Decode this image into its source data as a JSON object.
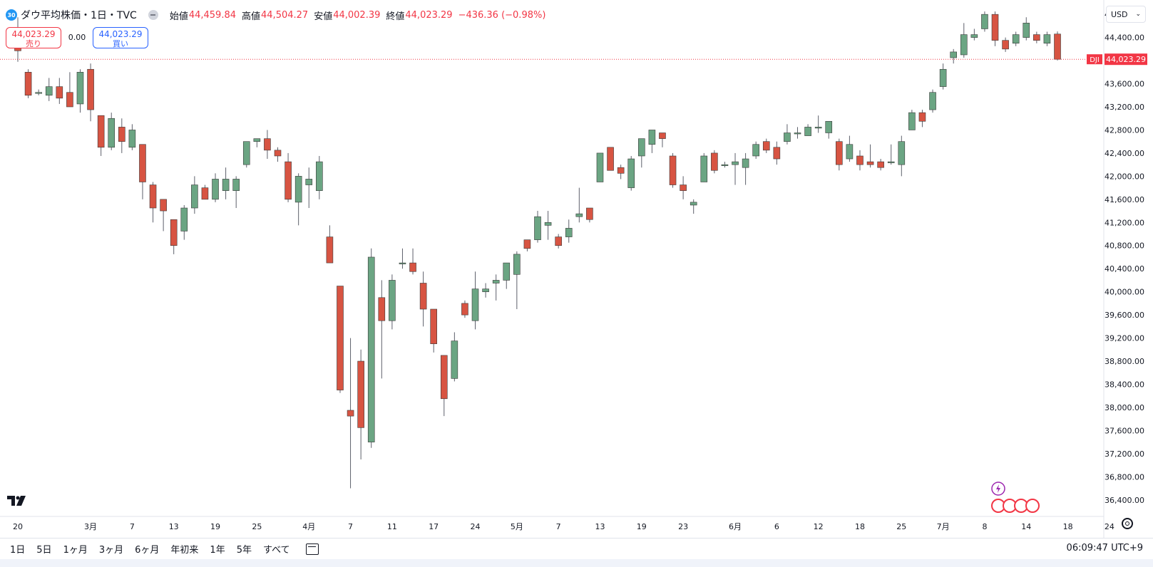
{
  "legend": {
    "badge": "30",
    "title": "ダウ平均株価・1日・TVC",
    "open_label": "始値",
    "open": "44,459.84",
    "high_label": "高値",
    "high": "44,504.27",
    "low_label": "安値",
    "low": "44,002.39",
    "close_label": "終値",
    "close": "44,023.29",
    "change": "−436.36 (−0.98%)"
  },
  "trade": {
    "sell_price": "44,023.29",
    "sell_label": "売り",
    "spread": "0.00",
    "buy_price": "44,023.29",
    "buy_label": "買い"
  },
  "currency": "USD",
  "colors": {
    "up": "#6ba583",
    "down": "#d75442",
    "wick": "#5d606b",
    "current": "#f23645",
    "axis_text": "#131722"
  },
  "icons": [
    "tradingview-logo-icon",
    "lightning-icon",
    "us-flag-icon",
    "settings-icon",
    "calendar-goto-icon",
    "chevron-down-icon"
  ],
  "chart_data": {
    "type": "candlestick",
    "symbol": "DJI",
    "current_price_label": "44,023.29",
    "current_price": 44023.29,
    "ylim": [
      36200,
      44950
    ],
    "y_ticks": [
      36400,
      36800,
      37200,
      37600,
      38000,
      38400,
      38800,
      39200,
      39600,
      40000,
      40400,
      40800,
      41200,
      41600,
      42000,
      42400,
      42800,
      43200,
      43600,
      44000,
      44400,
      44800
    ],
    "y_tick_labels": [
      "36,400.00",
      "36,800.00",
      "37,200.00",
      "37,600.00",
      "38,000.00",
      "38,400.00",
      "38,800.00",
      "39,200.00",
      "39,600.00",
      "40,000.00",
      "40,400.00",
      "40,800.00",
      "41,200.00",
      "41,600.00",
      "42,000.00",
      "42,400.00",
      "42,800.00",
      "43,200.00",
      "43,600.00",
      "44,000.00",
      "44,400.00",
      "44,800.00"
    ],
    "x_tick_labels": [
      {
        "label": "20",
        "candle": 0
      },
      {
        "label": "3月",
        "candle": 7
      },
      {
        "label": "7",
        "candle": 11
      },
      {
        "label": "13",
        "candle": 15
      },
      {
        "label": "19",
        "candle": 19
      },
      {
        "label": "25",
        "candle": 23
      },
      {
        "label": "4月",
        "candle": 28
      },
      {
        "label": "7",
        "candle": 32
      },
      {
        "label": "11",
        "candle": 36
      },
      {
        "label": "17",
        "candle": 40
      },
      {
        "label": "24",
        "candle": 44
      },
      {
        "label": "5月",
        "candle": 48
      },
      {
        "label": "7",
        "candle": 52
      },
      {
        "label": "13",
        "candle": 56
      },
      {
        "label": "19",
        "candle": 60
      },
      {
        "label": "23",
        "candle": 64
      },
      {
        "label": "6月",
        "candle": 69
      },
      {
        "label": "6",
        "candle": 73
      },
      {
        "label": "12",
        "candle": 77
      },
      {
        "label": "18",
        "candle": 81
      },
      {
        "label": "25",
        "candle": 85
      },
      {
        "label": "7月",
        "candle": 89
      },
      {
        "label": "8",
        "candle": 93
      },
      {
        "label": "14",
        "candle": 97
      },
      {
        "label": "18",
        "candle": 101
      },
      {
        "label": "24",
        "candle": 105
      }
    ],
    "candles": [
      {
        "o": 44420,
        "h": 44750,
        "l": 43980,
        "c": 44170
      },
      {
        "o": 43800,
        "h": 43850,
        "l": 43350,
        "c": 43400
      },
      {
        "o": 43450,
        "h": 43500,
        "l": 43400,
        "c": 43450
      },
      {
        "o": 43400,
        "h": 43700,
        "l": 43300,
        "c": 43550
      },
      {
        "o": 43550,
        "h": 43700,
        "l": 43250,
        "c": 43350
      },
      {
        "o": 43450,
        "h": 43800,
        "l": 43200,
        "c": 43200
      },
      {
        "o": 43250,
        "h": 43850,
        "l": 43100,
        "c": 43800
      },
      {
        "o": 43850,
        "h": 43950,
        "l": 42950,
        "c": 43150
      },
      {
        "o": 43050,
        "h": 43050,
        "l": 42350,
        "c": 42500
      },
      {
        "o": 42500,
        "h": 43100,
        "l": 42450,
        "c": 43000
      },
      {
        "o": 42850,
        "h": 43000,
        "l": 42400,
        "c": 42600
      },
      {
        "o": 42500,
        "h": 42900,
        "l": 42450,
        "c": 42800
      },
      {
        "o": 42550,
        "h": 42550,
        "l": 41600,
        "c": 41900
      },
      {
        "o": 41850,
        "h": 41900,
        "l": 41200,
        "c": 41450
      },
      {
        "o": 41600,
        "h": 41600,
        "l": 41050,
        "c": 41400
      },
      {
        "o": 41250,
        "h": 41250,
        "l": 40650,
        "c": 40800
      },
      {
        "o": 41050,
        "h": 41500,
        "l": 40900,
        "c": 41450
      },
      {
        "o": 41450,
        "h": 42000,
        "l": 41350,
        "c": 41850
      },
      {
        "o": 41800,
        "h": 41850,
        "l": 41650,
        "c": 41600
      },
      {
        "o": 41600,
        "h": 42050,
        "l": 41550,
        "c": 41950
      },
      {
        "o": 41750,
        "h": 42150,
        "l": 41600,
        "c": 41950
      },
      {
        "o": 41750,
        "h": 42000,
        "l": 41450,
        "c": 41950
      },
      {
        "o": 42200,
        "h": 42600,
        "l": 42150,
        "c": 42600
      },
      {
        "o": 42600,
        "h": 42650,
        "l": 42500,
        "c": 42650
      },
      {
        "o": 42650,
        "h": 42800,
        "l": 42300,
        "c": 42450
      },
      {
        "o": 42450,
        "h": 42500,
        "l": 42250,
        "c": 42350
      },
      {
        "o": 42250,
        "h": 42400,
        "l": 41550,
        "c": 41600
      },
      {
        "o": 41550,
        "h": 42050,
        "l": 41150,
        "c": 42000
      },
      {
        "o": 41850,
        "h": 42150,
        "l": 41450,
        "c": 41950
      },
      {
        "o": 41750,
        "h": 42350,
        "l": 41600,
        "c": 42250
      },
      {
        "o": 40950,
        "h": 41150,
        "l": 40500,
        "c": 40500
      },
      {
        "o": 40100,
        "h": 40100,
        "l": 38250,
        "c": 38300
      },
      {
        "o": 37950,
        "h": 39200,
        "l": 36600,
        "c": 37850
      },
      {
        "o": 38800,
        "h": 39000,
        "l": 37100,
        "c": 37650
      },
      {
        "o": 37400,
        "h": 40750,
        "l": 37300,
        "c": 40600
      },
      {
        "o": 39900,
        "h": 40200,
        "l": 38500,
        "c": 39500
      },
      {
        "o": 39500,
        "h": 40300,
        "l": 39350,
        "c": 40200
      },
      {
        "o": 40500,
        "h": 40750,
        "l": 40400,
        "c": 40500
      },
      {
        "o": 40500,
        "h": 40750,
        "l": 40300,
        "c": 40350
      },
      {
        "o": 40150,
        "h": 40350,
        "l": 39400,
        "c": 39700
      },
      {
        "o": 39700,
        "h": 39700,
        "l": 38950,
        "c": 39100
      },
      {
        "o": 38900,
        "h": 38900,
        "l": 37850,
        "c": 38150
      },
      {
        "o": 38500,
        "h": 39300,
        "l": 38450,
        "c": 39150
      },
      {
        "o": 39800,
        "h": 39850,
        "l": 39550,
        "c": 39600
      },
      {
        "o": 39500,
        "h": 40350,
        "l": 39350,
        "c": 40050
      },
      {
        "o": 40000,
        "h": 40150,
        "l": 39900,
        "c": 40050
      },
      {
        "o": 40150,
        "h": 40300,
        "l": 39850,
        "c": 40200
      },
      {
        "o": 40200,
        "h": 40500,
        "l": 40050,
        "c": 40500
      },
      {
        "o": 40300,
        "h": 40700,
        "l": 39700,
        "c": 40650
      },
      {
        "o": 40900,
        "h": 40900,
        "l": 40700,
        "c": 40750
      },
      {
        "o": 40900,
        "h": 41400,
        "l": 40850,
        "c": 41300
      },
      {
        "o": 41150,
        "h": 41400,
        "l": 40900,
        "c": 41200
      },
      {
        "o": 40950,
        "h": 41000,
        "l": 40750,
        "c": 40800
      },
      {
        "o": 40950,
        "h": 41250,
        "l": 40850,
        "c": 41100
      },
      {
        "o": 41300,
        "h": 41800,
        "l": 41200,
        "c": 41350
      },
      {
        "o": 41450,
        "h": 41450,
        "l": 41200,
        "c": 41250
      },
      {
        "o": 41900,
        "h": 42400,
        "l": 41900,
        "c": 42400
      },
      {
        "o": 42500,
        "h": 42500,
        "l": 42100,
        "c": 42100
      },
      {
        "o": 42150,
        "h": 42200,
        "l": 41950,
        "c": 42050
      },
      {
        "o": 41800,
        "h": 42350,
        "l": 41750,
        "c": 42300
      },
      {
        "o": 42350,
        "h": 42650,
        "l": 42150,
        "c": 42650
      },
      {
        "o": 42550,
        "h": 42800,
        "l": 42400,
        "c": 42800
      },
      {
        "o": 42750,
        "h": 42750,
        "l": 42500,
        "c": 42650
      },
      {
        "o": 42350,
        "h": 42400,
        "l": 41800,
        "c": 41850
      },
      {
        "o": 41850,
        "h": 42000,
        "l": 41600,
        "c": 41750
      },
      {
        "o": 41500,
        "h": 41600,
        "l": 41350,
        "c": 41550
      },
      {
        "o": 41900,
        "h": 42400,
        "l": 41900,
        "c": 42350
      },
      {
        "o": 42400,
        "h": 42450,
        "l": 42050,
        "c": 42100
      },
      {
        "o": 42200,
        "h": 42250,
        "l": 42150,
        "c": 42200
      },
      {
        "o": 42200,
        "h": 42400,
        "l": 41850,
        "c": 42250
      },
      {
        "o": 42150,
        "h": 42400,
        "l": 41850,
        "c": 42300
      },
      {
        "o": 42350,
        "h": 42600,
        "l": 42300,
        "c": 42550
      },
      {
        "o": 42600,
        "h": 42650,
        "l": 42400,
        "c": 42450
      },
      {
        "o": 42500,
        "h": 42600,
        "l": 42200,
        "c": 42300
      },
      {
        "o": 42600,
        "h": 42900,
        "l": 42550,
        "c": 42750
      },
      {
        "o": 42750,
        "h": 42850,
        "l": 42650,
        "c": 42750
      },
      {
        "o": 42700,
        "h": 42900,
        "l": 42700,
        "c": 42850
      },
      {
        "o": 42850,
        "h": 43050,
        "l": 42750,
        "c": 42850
      },
      {
        "o": 42750,
        "h": 42950,
        "l": 42650,
        "c": 42950
      },
      {
        "o": 42600,
        "h": 42650,
        "l": 42100,
        "c": 42200
      },
      {
        "o": 42300,
        "h": 42700,
        "l": 42250,
        "c": 42550
      },
      {
        "o": 42350,
        "h": 42450,
        "l": 42100,
        "c": 42200
      },
      {
        "o": 42250,
        "h": 42550,
        "l": 42150,
        "c": 42200
      },
      {
        "o": 42250,
        "h": 42300,
        "l": 42100,
        "c": 42150
      },
      {
        "o": 42250,
        "h": 42550,
        "l": 42200,
        "c": 42250
      },
      {
        "o": 42200,
        "h": 42700,
        "l": 42000,
        "c": 42600
      },
      {
        "o": 42800,
        "h": 43150,
        "l": 42800,
        "c": 43100
      },
      {
        "o": 43100,
        "h": 43150,
        "l": 42850,
        "c": 42950
      },
      {
        "o": 43150,
        "h": 43500,
        "l": 43100,
        "c": 43450
      },
      {
        "o": 43550,
        "h": 43950,
        "l": 43500,
        "c": 43850
      },
      {
        "o": 44050,
        "h": 44200,
        "l": 43950,
        "c": 44150
      },
      {
        "o": 44100,
        "h": 44650,
        "l": 44050,
        "c": 44450
      },
      {
        "o": 44400,
        "h": 44550,
        "l": 44350,
        "c": 44450
      },
      {
        "o": 44550,
        "h": 44850,
        "l": 44500,
        "c": 44800
      },
      {
        "o": 44800,
        "h": 44850,
        "l": 44250,
        "c": 44350
      },
      {
        "o": 44350,
        "h": 44400,
        "l": 44150,
        "c": 44200
      },
      {
        "o": 44300,
        "h": 44500,
        "l": 44250,
        "c": 44450
      },
      {
        "o": 44400,
        "h": 44750,
        "l": 44350,
        "c": 44650
      },
      {
        "o": 44450,
        "h": 44500,
        "l": 44300,
        "c": 44350
      },
      {
        "o": 44300,
        "h": 44500,
        "l": 44250,
        "c": 44450
      },
      {
        "o": 44459.84,
        "h": 44504.27,
        "l": 44002.39,
        "c": 44023.29
      }
    ]
  },
  "bottom": {
    "ranges": [
      "1日",
      "5日",
      "1ヶ月",
      "3ヶ月",
      "6ヶ月",
      "年初来",
      "1年",
      "5年",
      "すべて"
    ],
    "clock": "06:09:47 UTC+9"
  }
}
